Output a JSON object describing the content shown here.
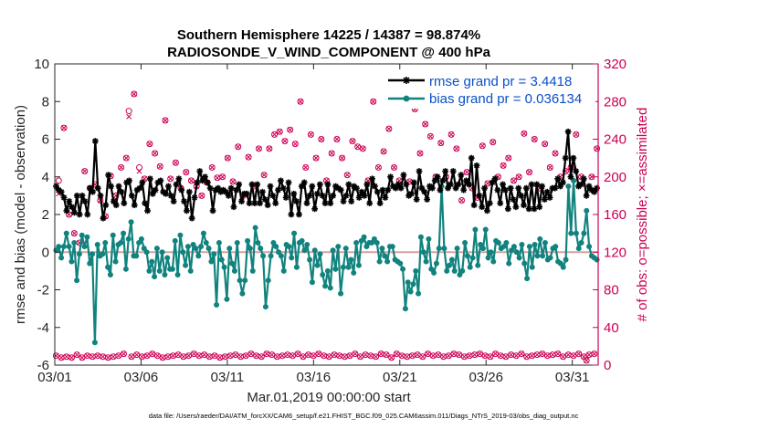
{
  "colors": {
    "rmse": "#000000",
    "bias": "#11837e",
    "obs": "#cc0055",
    "legend_text": "#0a50c8",
    "zero_line": "#d8a0a0"
  },
  "chart_data": {
    "type": "line",
    "title": "Southern Hemisphere 14225 / 14387 = 98.874%",
    "subtitle": "RADIOSONDE_V_WIND_COMPONENT @ 400 hPa",
    "xlabel": "Mar.01,2019 00:00:00 start",
    "ylabel_left": "rmse and bias (model - observation)",
    "ylabel_right": "# of obs: o=possible; ×=assimilated",
    "xlim": [
      0,
      31.5
    ],
    "ylim_left": [
      -6,
      10
    ],
    "ylim_right": [
      0,
      320
    ],
    "x_ticks": [
      0,
      5,
      10,
      15,
      20,
      25,
      30
    ],
    "x_tick_labels": [
      "03/01",
      "03/06",
      "03/11",
      "03/16",
      "03/21",
      "03/26",
      "03/31"
    ],
    "y_ticks_left": [
      -6,
      -4,
      -2,
      0,
      2,
      4,
      6,
      8,
      10
    ],
    "y_ticks_right": [
      0,
      40,
      80,
      120,
      160,
      200,
      240,
      280,
      320
    ],
    "legend": [
      {
        "label": "rmse grand pr = 3.4418",
        "series": "rmse"
      },
      {
        "label": "bias grand pr = 0.036134",
        "series": "bias"
      }
    ],
    "legend_position": "top-right",
    "reference_line_y": 0,
    "footnote": "data file: /Users/raeder/DAI/ATM_forcXX/CAM6_setup/f.e21.FHIST_BGC.f09_025.CAM6assim.011/Diags_NTrS_2019-03/obs_diag_output.nc",
    "series": [
      {
        "name": "rmse",
        "axis": "left",
        "marker": "star",
        "values": [
          3.5,
          3.3,
          3.2,
          2.9,
          2.2,
          2.7,
          2.4,
          2.1,
          3.0,
          2.0,
          3.0,
          2.7,
          2.0,
          3.4,
          3.2,
          5.9,
          3.4,
          3.0,
          1.8,
          2.5,
          4.1,
          3.5,
          2.7,
          2.5,
          3.5,
          3.2,
          2.6,
          3.7,
          3.8,
          3.0,
          2.5,
          3.3,
          3.4,
          3.7,
          2.6,
          2.2,
          3.9,
          3.1,
          3.3,
          3.7,
          3.8,
          3.2,
          3.1,
          3.5,
          3.0,
          2.7,
          3.6,
          3.9,
          3.3,
          2.7,
          2.2,
          3.2,
          1.8,
          2.9,
          3.7,
          4.3,
          3.8,
          4.0,
          3.7,
          3.4,
          2.2,
          3.3,
          3.4,
          3.2,
          3.3,
          3.2,
          3.0,
          3.4,
          2.4,
          3.3,
          3.6,
          2.7,
          3.1,
          3.1,
          2.6,
          3.6,
          2.6,
          3.6,
          2.6,
          3.2,
          2.8,
          2.5,
          3.5,
          3.0,
          2.6,
          3.3,
          3.8,
          3.4,
          2.9,
          3.7,
          2.0,
          3.1,
          2.7,
          2.0,
          3.5,
          3.7,
          2.6,
          3.0,
          3.5,
          2.3,
          3.1,
          3.6,
          3.0,
          2.6,
          3.6,
          2.6,
          3.0,
          3.5,
          3.4,
          3.3,
          2.7,
          3.0,
          3.6,
          2.7,
          3.5,
          3.4,
          2.9,
          3.2,
          3.0,
          3.6,
          2.6,
          3.9,
          3.5,
          3.2,
          2.6,
          3.3,
          2.9,
          3.3,
          4.0,
          3.5,
          3.4,
          3.6,
          3.4,
          4.1,
          3.6,
          3.0,
          3.1,
          3.7,
          2.8,
          4.3,
          3.4,
          3.2,
          2.8,
          3.5,
          3.4,
          3.8,
          4.0,
          3.3,
          3.8,
          4.3,
          3.4,
          3.6,
          4.3,
          3.4,
          3.6,
          4.1,
          3.3,
          3.8,
          3.6,
          5.0,
          2.5,
          4.6,
          3.0,
          2.4,
          3.4,
          2.2,
          2.6,
          3.7,
          3.9,
          3.3,
          2.6,
          3.6,
          3.3,
          2.3,
          3.4,
          2.8,
          2.4,
          3.4,
          3.0,
          2.5,
          3.4,
          2.3,
          3.6,
          2.3,
          3.6,
          2.4,
          3.5,
          2.8,
          3.2,
          2.9,
          3.4,
          3.4,
          3.9,
          3.5,
          3.7,
          5.0,
          6.4,
          4.0,
          5.0,
          4.3,
          3.5,
          3.6,
          3.9,
          3.0,
          3.5,
          3.3,
          3.2,
          3.4
        ]
      },
      {
        "name": "bias",
        "axis": "left",
        "marker": "dot",
        "values": [
          0.1,
          0.3,
          -0.3,
          0.3,
          1.0,
          0.3,
          -0.5,
          0.5,
          -1.5,
          -0.1,
          0.9,
          0.3,
          0.8,
          -0.6,
          -0.1,
          -4.8,
          0.4,
          -0.2,
          -0.1,
          0.5,
          -0.8,
          -1.2,
          0.9,
          -0.5,
          0.4,
          0.5,
          1.0,
          -0.9,
          0.7,
          1.6,
          -0.2,
          -0.2,
          0.5,
          0.7,
          0.2,
          0.0,
          -1.0,
          -0.5,
          -1.3,
          0.2,
          -1.0,
          0.0,
          -1.2,
          -0.3,
          -0.9,
          -0.9,
          0.6,
          -1.2,
          0.9,
          0.0,
          -0.7,
          0.3,
          -1.0,
          0.4,
          0.2,
          -0.2,
          0.3,
          1.0,
          0.5,
          0.2,
          -0.5,
          -0.1,
          -2.8,
          0.5,
          -0.4,
          -0.8,
          -2.5,
          0.2,
          -0.6,
          -1.0,
          0.5,
          -1.5,
          -2.2,
          -1.5,
          0.6,
          0.2,
          -1.0,
          1.3,
          0.5,
          0.2,
          -0.2,
          -2.9,
          -1.5,
          -0.2,
          0.5,
          0.3,
          0.0,
          -0.2,
          -1.0,
          0.4,
          0.3,
          -0.3,
          1.0,
          -0.8,
          0.5,
          0.6,
          0.1,
          0.4,
          -0.4,
          -1.6,
          0.1,
          -0.7,
          -0.1,
          -1.2,
          -1.8,
          -1.0,
          -1.9,
          0.1,
          -0.9,
          0.3,
          -2.2,
          -0.8,
          0.2,
          -0.8,
          -0.4,
          -1.1,
          0.5,
          -0.7,
          0.6,
          0.8,
          0.3,
          0.5,
          0.5,
          0.7,
          0.5,
          -0.5,
          0.2,
          -0.2,
          -0.5,
          0.3,
          0.3,
          -0.4,
          -0.5,
          -0.6,
          -0.9,
          -3.0,
          -1.6,
          -2.1,
          -1.7,
          -1.0,
          -2.2,
          0.8,
          0.0,
          -0.5,
          0.7,
          -0.9,
          -1.1,
          -0.6,
          0.2,
          3.5,
          0.2,
          -1.0,
          -0.7,
          -0.4,
          -1.0,
          0.2,
          -1.2,
          -1.0,
          0.5,
          -0.2,
          -0.8,
          -0.3,
          1.2,
          -0.7,
          0.4,
          0.2,
          1.2,
          -0.3,
          0.0,
          -0.5,
          0.6,
          0.5,
          0.2,
          0.3,
          0.5,
          -0.6,
          0.1,
          0.3,
          0.0,
          -0.3,
          0.4,
          -0.6,
          -1.4,
          0.3,
          -0.8,
          0.4,
          -0.2,
          0.7,
          -0.2,
          0.5,
          -0.4,
          -0.3,
          0.2,
          0.3,
          -0.5,
          -0.6,
          -0.8,
          -0.4,
          3.5,
          1.0,
          3.8,
          1.0,
          0.2,
          0.5,
          1.0,
          2.2,
          0.3,
          -0.2,
          -0.3,
          -0.4
        ]
      },
      {
        "name": "obs_possible",
        "axis": "right",
        "marker": "circle",
        "values": [
          10,
          196,
          8,
          252,
          9,
          160,
          8,
          140,
          11,
          130,
          8,
          206,
          10,
          188,
          9,
          192,
          10,
          175,
          9,
          158,
          8,
          201,
          9,
          180,
          10,
          210,
          12,
          220,
          270,
          9,
          288,
          11,
          210,
          9,
          198,
          10,
          235,
          12,
          225,
          10,
          211,
          8,
          260,
          9,
          198,
          10,
          215,
          11,
          188,
          9,
          205,
          10,
          196,
          12,
          190,
          10,
          180,
          11,
          194,
          9,
          210,
          10,
          199,
          8,
          200,
          9,
          220,
          10,
          195,
          11,
          232,
          9,
          180,
          10,
          221,
          12,
          190,
          10,
          230,
          9,
          202,
          12,
          230,
          11,
          245,
          9,
          248,
          10,
          238,
          11,
          250,
          10,
          235,
          12,
          280,
          9,
          210,
          11,
          245,
          10,
          220,
          12,
          240,
          10,
          196,
          9,
          225,
          11,
          240,
          10,
          220,
          9,
          202,
          10,
          238,
          12,
          232,
          9,
          230,
          11,
          196,
          10,
          280,
          9,
          210,
          12,
          227,
          11,
          251,
          8,
          210,
          12,
          196,
          10,
          283,
          9,
          195,
          10,
          272,
          11,
          225,
          9,
          256,
          12,
          243,
          10,
          200,
          11,
          236,
          9,
          200,
          10,
          245,
          12,
          230,
          11,
          175,
          9,
          205,
          10,
          188,
          11,
          178,
          12,
          233,
          10,
          193,
          9,
          237,
          12,
          200,
          10,
          212,
          9,
          220,
          11,
          196,
          10,
          200,
          12,
          246,
          9,
          205,
          10,
          240,
          11,
          188,
          12,
          235,
          10,
          210,
          11,
          225,
          12,
          200,
          9,
          206,
          11,
          210,
          10,
          245,
          12,
          200,
          9,
          5,
          11,
          200,
          12,
          230
        ]
      },
      {
        "name": "obs_assimilated",
        "axis": "right",
        "marker": "x",
        "values": [
          10,
          182,
          8,
          252,
          9,
          160,
          8,
          140,
          11,
          130,
          8,
          206,
          10,
          188,
          9,
          192,
          10,
          175,
          9,
          158,
          8,
          201,
          9,
          180,
          10,
          210,
          12,
          220,
          264,
          9,
          288,
          11,
          206,
          9,
          198,
          10,
          235,
          12,
          225,
          10,
          211,
          8,
          260,
          9,
          198,
          10,
          215,
          11,
          188,
          9,
          205,
          10,
          196,
          12,
          190,
          10,
          180,
          11,
          194,
          9,
          210,
          10,
          199,
          8,
          200,
          9,
          220,
          10,
          195,
          11,
          232,
          9,
          180,
          10,
          221,
          12,
          190,
          10,
          230,
          9,
          202,
          12,
          230,
          11,
          245,
          9,
          248,
          10,
          238,
          11,
          250,
          10,
          235,
          12,
          280,
          9,
          210,
          11,
          245,
          10,
          220,
          12,
          240,
          10,
          196,
          9,
          225,
          11,
          240,
          10,
          220,
          9,
          202,
          10,
          238,
          12,
          232,
          9,
          230,
          11,
          196,
          10,
          280,
          9,
          210,
          12,
          227,
          11,
          251,
          8,
          210,
          12,
          196,
          10,
          283,
          9,
          195,
          10,
          272,
          11,
          225,
          9,
          256,
          12,
          243,
          10,
          200,
          11,
          236,
          9,
          200,
          10,
          245,
          12,
          230,
          11,
          175,
          9,
          205,
          10,
          188,
          11,
          178,
          12,
          233,
          10,
          193,
          9,
          237,
          12,
          200,
          10,
          212,
          9,
          220,
          11,
          196,
          10,
          200,
          12,
          246,
          9,
          205,
          10,
          240,
          11,
          188,
          12,
          235,
          10,
          210,
          11,
          225,
          12,
          200,
          9,
          206,
          11,
          210,
          10,
          245,
          12,
          200,
          9,
          5,
          11,
          200,
          12,
          230
        ]
      }
    ]
  }
}
